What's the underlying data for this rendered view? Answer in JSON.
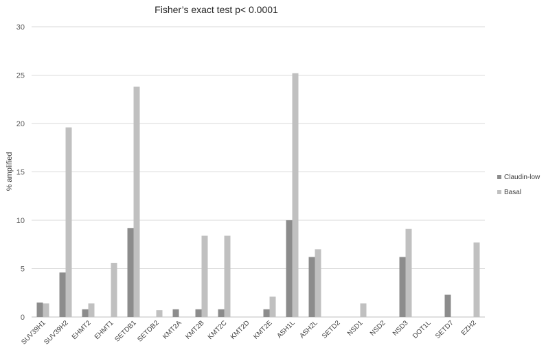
{
  "chart_data": {
    "type": "bar",
    "title": "Fisher’s exact test p< 0.0001",
    "xlabel": "",
    "ylabel": "% amplified",
    "ylim": [
      0,
      30
    ],
    "yticks": [
      0,
      5,
      10,
      15,
      20,
      25,
      30
    ],
    "grid": true,
    "legend_position": "right",
    "categories": [
      "SUV39H1",
      "SUV39H2",
      "EHMT2",
      "EHMT1",
      "SETDB1",
      "SETDB2",
      "KMT2A",
      "KMT2B",
      "KMT2C",
      "KMT2D",
      "KMT2E",
      "ASH1L",
      "ASH2L",
      "SETD2",
      "NSD1",
      "NSD2",
      "NSD3",
      "DOT1L",
      "SETD7",
      "EZH2"
    ],
    "series": [
      {
        "name": "Claudin-low",
        "color": "#8c8c8c",
        "values": [
          1.5,
          4.6,
          0.8,
          0,
          9.2,
          0,
          0.8,
          0.8,
          0.8,
          0,
          0.8,
          10.0,
          6.2,
          0,
          0,
          0,
          6.2,
          0,
          2.3,
          0
        ]
      },
      {
        "name": "Basal",
        "color": "#c0c0c0",
        "values": [
          1.4,
          19.6,
          1.4,
          5.6,
          23.8,
          0.7,
          0,
          8.4,
          8.4,
          0,
          2.1,
          25.2,
          7.0,
          0,
          1.4,
          0,
          9.1,
          0,
          0,
          7.7
        ]
      }
    ]
  }
}
